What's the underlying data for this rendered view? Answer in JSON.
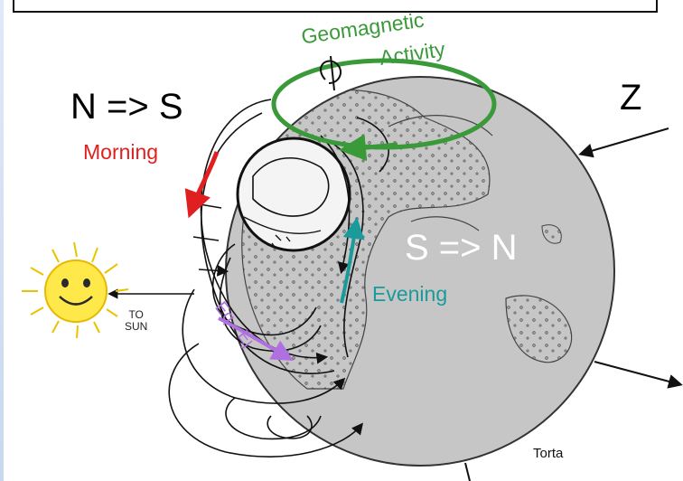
{
  "labels": {
    "geomagnetic_line1": "Geomagnetic",
    "geomagnetic_line2": "Activity",
    "n_to_s": "N => S",
    "s_to_n": "S => N",
    "z": "Z",
    "morning": "Morning",
    "evening": "Evening",
    "to_sun_line1": "TO",
    "to_sun_line2": "SUN",
    "torta": "Torta",
    "eq_ej": "Eq - Ej"
  },
  "colors": {
    "geomagnetic": "#3a9a3a",
    "morning": "#e02020",
    "evening": "#1a9a9a",
    "eq_ej": "#b070e0",
    "earth_fill": "#c6c6c6",
    "sun_fill": "#ffe94a"
  },
  "icons": {
    "sun": "smiling-sun-icon",
    "rotation": "rotation-arrow-icon"
  }
}
